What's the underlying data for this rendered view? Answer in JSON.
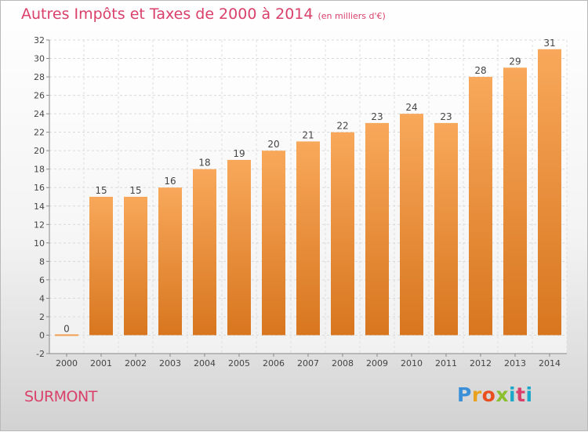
{
  "title": "Autres Impôts et Taxes de 2000 à 2014",
  "subtitle": "(en milliers d'€)",
  "place": "SURMONT",
  "logo": "Proxiti",
  "colors": {
    "title": "#d9406a",
    "bar_top": "#f8a85a",
    "bar_bottom": "#d8761f"
  },
  "chart_data": {
    "type": "bar",
    "categories": [
      "2000",
      "2001",
      "2002",
      "2003",
      "2004",
      "2005",
      "2006",
      "2007",
      "2008",
      "2009",
      "2010",
      "2011",
      "2012",
      "2013",
      "2014"
    ],
    "values": [
      0,
      15,
      15,
      16,
      18,
      19,
      20,
      21,
      22,
      23,
      24,
      23,
      28,
      29,
      31
    ],
    "ylim": [
      -2,
      32
    ],
    "yticks": [
      -2,
      0,
      2,
      4,
      6,
      8,
      10,
      12,
      14,
      16,
      18,
      20,
      22,
      24,
      26,
      28,
      30,
      32
    ],
    "grid": true
  }
}
